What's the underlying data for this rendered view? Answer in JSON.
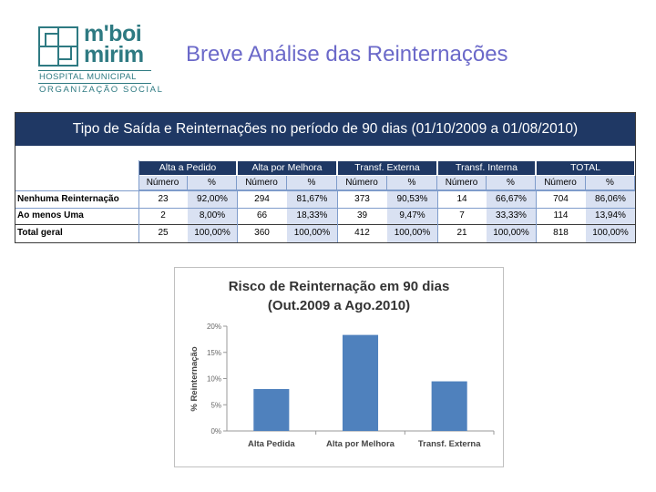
{
  "logo": {
    "line1": "m'boi",
    "line2": "mirim",
    "sub1": "HOSPITAL MUNICIPAL",
    "sub2": "ORGANIZAÇÃO SOCIAL",
    "color": "#2e7a82"
  },
  "slide_title": "Breve Análise das Reinternações",
  "table": {
    "title": "Tipo de Saída e Reinternações no período de 90 dias (01/10/2009 a 01/08/2010)",
    "groups": [
      "Alta a Pedido",
      "Alta por Melhora",
      "Transf. Externa",
      "Transf. Interna",
      "TOTAL"
    ],
    "subheaders": [
      "Número",
      "%",
      "Número",
      "%",
      "Número",
      "%",
      "Número",
      "%",
      "Número",
      "%"
    ],
    "rows": [
      {
        "label": "Nenhuma Reinternação",
        "cells": [
          "23",
          "92,00%",
          "294",
          "81,67%",
          "373",
          "90,53%",
          "14",
          "66,67%",
          "704",
          "86,06%"
        ]
      },
      {
        "label": "Ao menos Uma",
        "cells": [
          "2",
          "8,00%",
          "66",
          "18,33%",
          "39",
          "9,47%",
          "7",
          "33,33%",
          "114",
          "13,94%"
        ]
      },
      {
        "label": "Total geral",
        "cells": [
          "25",
          "100,00%",
          "360",
          "100,00%",
          "412",
          "100,00%",
          "21",
          "100,00%",
          "818",
          "100,00%"
        ]
      }
    ],
    "header_color": "#1f3864",
    "shade_color": "#d9e1f2"
  },
  "chart_data": {
    "type": "bar",
    "title": "Risco de Reinternação em 90 dias",
    "subtitle": "(Out.2009 a Ago.2010)",
    "categories": [
      "Alta Pedida",
      "Alta por Melhora",
      "Transf. Externa"
    ],
    "values": [
      8.0,
      18.33,
      9.47
    ],
    "ylabel": "% Reinternação",
    "ylim": [
      0,
      20
    ],
    "yticks": [
      "0%",
      "5%",
      "10%",
      "15%",
      "20%"
    ],
    "bar_color": "#4f81bd",
    "grid": false
  }
}
